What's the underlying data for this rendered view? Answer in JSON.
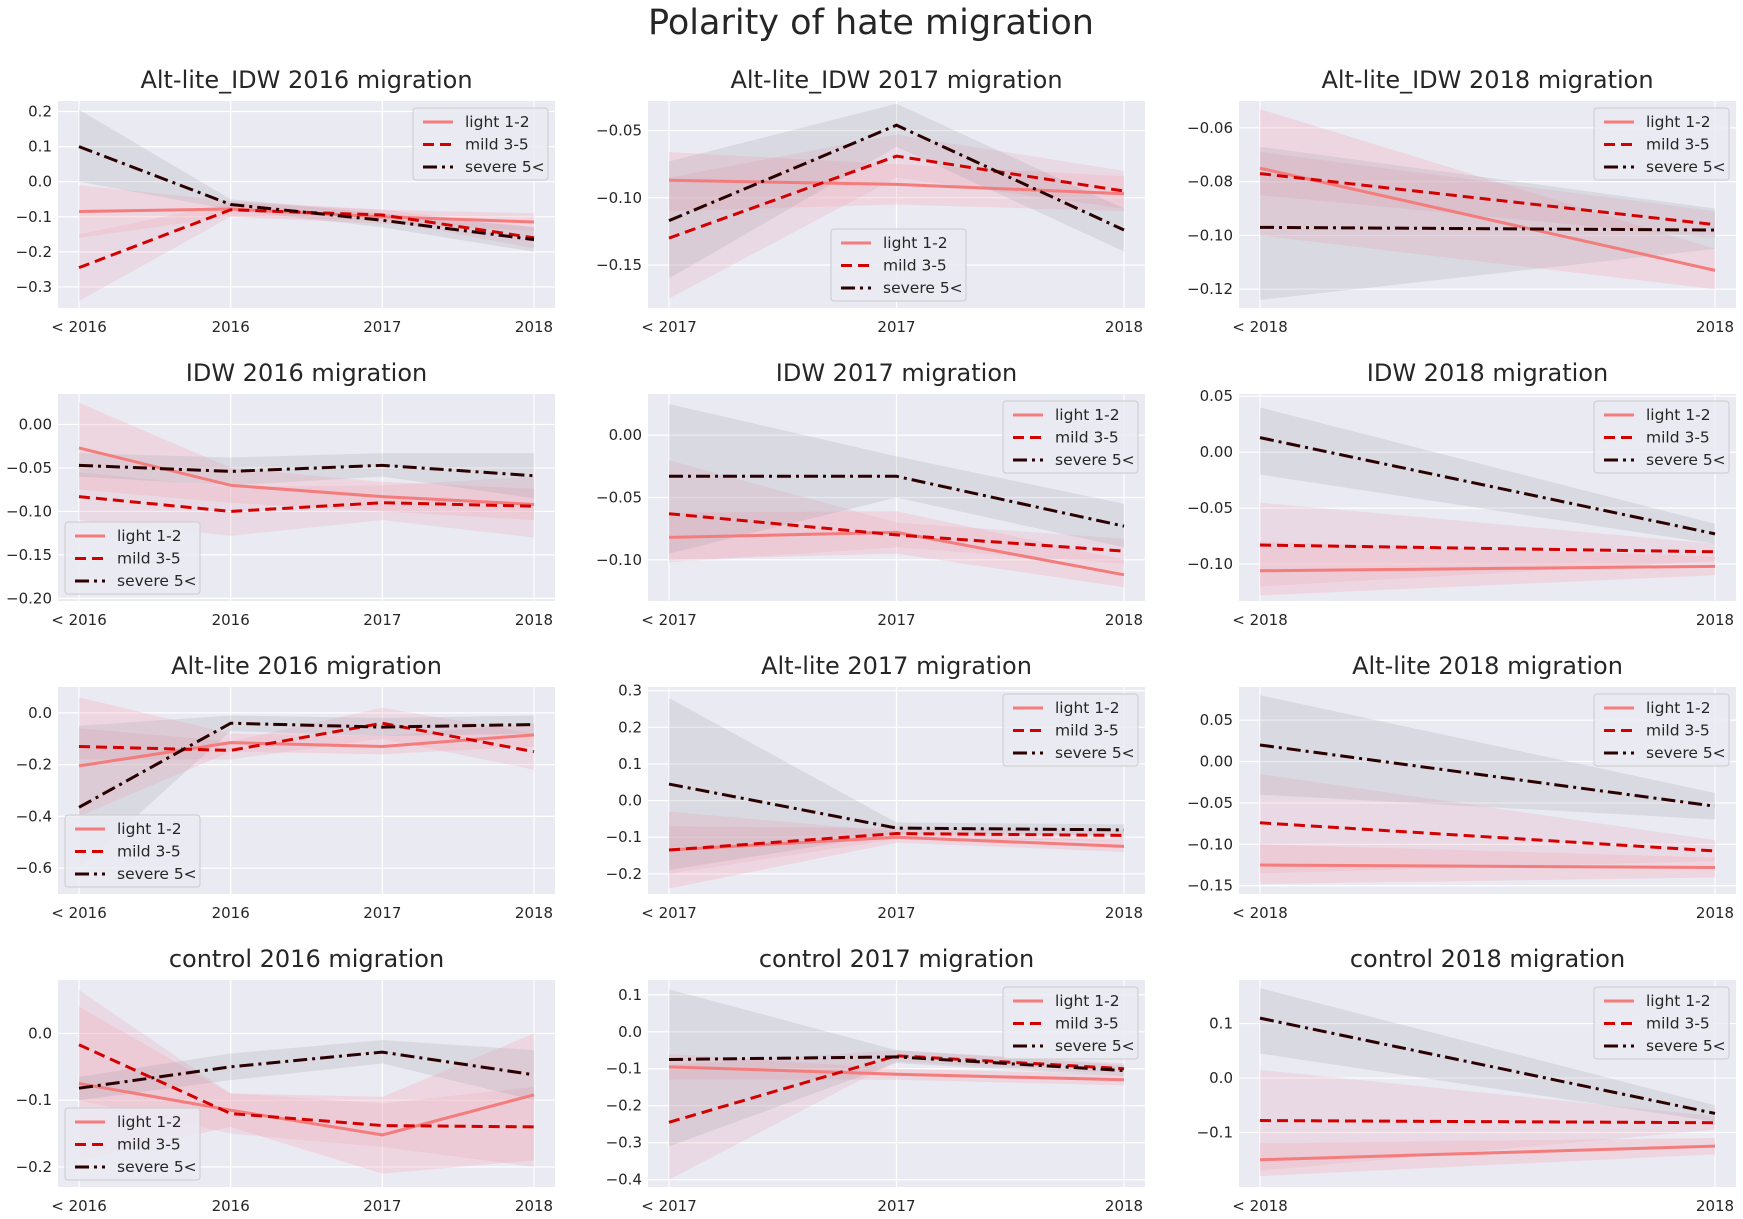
{
  "title": "Polarity of hate migration",
  "colors": {
    "background": "#eaeaf2",
    "grid": "#ffffff",
    "light": "#f47c7c",
    "mild": "#d40000",
    "severe": "#2a0000",
    "band_light": "#f4a3b4",
    "band_mild": "#e8a0b0",
    "band_severe": "#a0a0aa"
  },
  "series_names": [
    "light 1-2",
    "mild 3-5",
    "severe 5<"
  ],
  "chart_data": [
    {
      "type": "line",
      "title": "Alt-lite_IDW 2016 migration",
      "categories": [
        "< 2016",
        "2016",
        "2017",
        "2018"
      ],
      "ylim": [
        -0.36,
        0.23
      ],
      "yticks": [
        0.2,
        0.1,
        0.0,
        -0.1,
        -0.2,
        -0.3
      ],
      "ytick_labels": [
        "0.2",
        "0.1",
        "0.0",
        "−0.1",
        "−0.2",
        "−0.3"
      ],
      "legend": "top-right",
      "grid": true,
      "series": [
        {
          "name": "light 1-2",
          "values": [
            -0.085,
            -0.078,
            -0.1,
            -0.115
          ],
          "lower": [
            -0.16,
            -0.1,
            -0.12,
            -0.14
          ],
          "upper": [
            -0.01,
            -0.055,
            -0.08,
            -0.09
          ]
        },
        {
          "name": "mild 3-5",
          "values": [
            -0.245,
            -0.08,
            -0.095,
            -0.16
          ],
          "lower": [
            -0.34,
            -0.1,
            -0.11,
            -0.19
          ],
          "upper": [
            -0.15,
            -0.06,
            -0.08,
            -0.13
          ]
        },
        {
          "name": "severe 5<",
          "values": [
            0.1,
            -0.065,
            -0.11,
            -0.165
          ],
          "lower": [
            0.0,
            -0.08,
            -0.13,
            -0.2
          ],
          "upper": [
            0.205,
            -0.05,
            -0.09,
            -0.13
          ]
        }
      ]
    },
    {
      "type": "line",
      "title": "Alt-lite_IDW 2017 migration",
      "categories": [
        "< 2017",
        "2017",
        "2018"
      ],
      "ylim": [
        -0.182,
        -0.028
      ],
      "yticks": [
        -0.05,
        -0.1,
        -0.15
      ],
      "ytick_labels": [
        "−0.05",
        "−0.10",
        "−0.15"
      ],
      "legend": "bottom-center",
      "grid": true,
      "series": [
        {
          "name": "light 1-2",
          "values": [
            -0.087,
            -0.09,
            -0.097
          ],
          "lower": [
            -0.11,
            -0.105,
            -0.11
          ],
          "upper": [
            -0.066,
            -0.075,
            -0.084
          ]
        },
        {
          "name": "mild 3-5",
          "values": [
            -0.13,
            -0.069,
            -0.095
          ],
          "lower": [
            -0.175,
            -0.085,
            -0.108
          ],
          "upper": [
            -0.085,
            -0.053,
            -0.08
          ]
        },
        {
          "name": "severe 5<",
          "values": [
            -0.117,
            -0.046,
            -0.124
          ],
          "lower": [
            -0.16,
            -0.062,
            -0.14
          ],
          "upper": [
            -0.073,
            -0.03,
            -0.108
          ]
        }
      ]
    },
    {
      "type": "line",
      "title": "Alt-lite_IDW 2018 migration",
      "categories": [
        "< 2018",
        "2018"
      ],
      "ylim": [
        -0.127,
        -0.05
      ],
      "yticks": [
        -0.06,
        -0.08,
        -0.1,
        -0.12
      ],
      "ytick_labels": [
        "−0.06",
        "−0.08",
        "−0.10",
        "−0.12"
      ],
      "legend": "top-right",
      "grid": true,
      "series": [
        {
          "name": "light 1-2",
          "values": [
            -0.075,
            -0.113
          ],
          "lower": [
            -0.1,
            -0.12
          ],
          "upper": [
            -0.053,
            -0.105
          ]
        },
        {
          "name": "mild 3-5",
          "values": [
            -0.077,
            -0.096
          ],
          "lower": [
            -0.085,
            -0.101
          ],
          "upper": [
            -0.069,
            -0.091
          ]
        },
        {
          "name": "severe 5<",
          "values": [
            -0.097,
            -0.098
          ],
          "lower": [
            -0.124,
            -0.105
          ],
          "upper": [
            -0.067,
            -0.09
          ]
        }
      ]
    },
    {
      "type": "line",
      "title": "IDW 2016 migration",
      "categories": [
        "< 2016",
        "2016",
        "2017",
        "2018"
      ],
      "ylim": [
        -0.203,
        0.035
      ],
      "yticks": [
        0.0,
        -0.05,
        -0.1,
        -0.15,
        -0.2
      ],
      "ytick_labels": [
        "0.00",
        "−0.05",
        "−0.10",
        "−0.15",
        "−0.20"
      ],
      "legend": "bottom-left",
      "grid": true,
      "series": [
        {
          "name": "light 1-2",
          "values": [
            -0.027,
            -0.07,
            -0.083,
            -0.092
          ],
          "lower": [
            -0.075,
            -0.09,
            -0.1,
            -0.11
          ],
          "upper": [
            0.025,
            -0.05,
            -0.066,
            -0.074
          ]
        },
        {
          "name": "mild 3-5",
          "values": [
            -0.083,
            -0.1,
            -0.09,
            -0.094
          ],
          "lower": [
            -0.11,
            -0.128,
            -0.11,
            -0.13
          ],
          "upper": [
            -0.055,
            -0.072,
            -0.07,
            -0.06
          ]
        },
        {
          "name": "severe 5<",
          "values": [
            -0.047,
            -0.054,
            -0.047,
            -0.059
          ],
          "lower": [
            -0.06,
            -0.07,
            -0.06,
            -0.085
          ],
          "upper": [
            -0.033,
            -0.038,
            -0.033,
            -0.033
          ]
        }
      ]
    },
    {
      "type": "line",
      "title": "IDW 2017 migration",
      "categories": [
        "< 2017",
        "2017",
        "2018"
      ],
      "ylim": [
        -0.133,
        0.033
      ],
      "yticks": [
        0.0,
        -0.05,
        -0.1
      ],
      "ytick_labels": [
        "0.00",
        "−0.05",
        "−0.10"
      ],
      "legend": "top-right",
      "grid": true,
      "series": [
        {
          "name": "light 1-2",
          "values": [
            -0.082,
            -0.078,
            -0.112
          ],
          "lower": [
            -0.1,
            -0.095,
            -0.122
          ],
          "upper": [
            -0.062,
            -0.061,
            -0.1
          ]
        },
        {
          "name": "mild 3-5",
          "values": [
            -0.063,
            -0.08,
            -0.093
          ],
          "lower": [
            -0.102,
            -0.09,
            -0.103
          ],
          "upper": [
            -0.02,
            -0.07,
            -0.083
          ]
        },
        {
          "name": "severe 5<",
          "values": [
            -0.033,
            -0.033,
            -0.073
          ],
          "lower": [
            -0.095,
            -0.05,
            -0.09
          ],
          "upper": [
            0.025,
            -0.017,
            -0.055
          ]
        }
      ]
    },
    {
      "type": "line",
      "title": "IDW 2018 migration",
      "categories": [
        "< 2018",
        "2018"
      ],
      "ylim": [
        -0.133,
        0.052
      ],
      "yticks": [
        0.05,
        0.0,
        -0.05,
        -0.1
      ],
      "ytick_labels": [
        "0.05",
        "0.00",
        "−0.05",
        "−0.10"
      ],
      "legend": "top-right",
      "grid": true,
      "series": [
        {
          "name": "light 1-2",
          "values": [
            -0.106,
            -0.102
          ],
          "lower": [
            -0.128,
            -0.11
          ],
          "upper": [
            -0.08,
            -0.093
          ]
        },
        {
          "name": "mild 3-5",
          "values": [
            -0.083,
            -0.089
          ],
          "lower": [
            -0.12,
            -0.097
          ],
          "upper": [
            -0.045,
            -0.082
          ]
        },
        {
          "name": "severe 5<",
          "values": [
            0.013,
            -0.073
          ],
          "lower": [
            -0.02,
            -0.082
          ],
          "upper": [
            0.04,
            -0.064
          ]
        }
      ]
    },
    {
      "type": "line",
      "title": "Alt-lite 2016 migration",
      "categories": [
        "< 2016",
        "2016",
        "2017",
        "2018"
      ],
      "ylim": [
        -0.7,
        0.1
      ],
      "yticks": [
        0.0,
        -0.2,
        -0.4,
        -0.6
      ],
      "ytick_labels": [
        "0.0",
        "−0.2",
        "−0.4",
        "−0.6"
      ],
      "legend": "bottom-left",
      "grid": true,
      "series": [
        {
          "name": "light 1-2",
          "values": [
            -0.205,
            -0.115,
            -0.13,
            -0.085
          ],
          "lower": [
            -0.4,
            -0.15,
            -0.16,
            -0.13
          ],
          "upper": [
            0.06,
            -0.08,
            -0.09,
            -0.04
          ]
        },
        {
          "name": "mild 3-5",
          "values": [
            -0.13,
            -0.145,
            -0.04,
            -0.15
          ],
          "lower": [
            -0.18,
            -0.18,
            -0.1,
            -0.22
          ],
          "upper": [
            -0.06,
            -0.11,
            0.02,
            -0.08
          ]
        },
        {
          "name": "severe 5<",
          "values": [
            -0.365,
            -0.04,
            -0.055,
            -0.045
          ],
          "lower": [
            -0.6,
            -0.07,
            -0.09,
            -0.08
          ],
          "upper": [
            -0.05,
            -0.01,
            -0.02,
            -0.01
          ]
        }
      ]
    },
    {
      "type": "line",
      "title": "Alt-lite 2017 migration",
      "categories": [
        "< 2017",
        "2017",
        "2018"
      ],
      "ylim": [
        -0.255,
        0.31
      ],
      "yticks": [
        0.3,
        0.2,
        0.1,
        0.0,
        -0.1,
        -0.2
      ],
      "ytick_labels": [
        "0.3",
        "0.2",
        "0.1",
        "0.0",
        "−0.1",
        "−0.2"
      ],
      "legend": "top-right",
      "grid": true,
      "series": [
        {
          "name": "light 1-2",
          "values": [
            -0.135,
            -0.1,
            -0.125
          ],
          "lower": [
            -0.24,
            -0.115,
            -0.14
          ],
          "upper": [
            -0.03,
            -0.085,
            -0.11
          ]
        },
        {
          "name": "mild 3-5",
          "values": [
            -0.135,
            -0.09,
            -0.095
          ],
          "lower": [
            -0.2,
            -0.105,
            -0.11
          ],
          "upper": [
            -0.07,
            -0.075,
            -0.08
          ]
        },
        {
          "name": "severe 5<",
          "values": [
            0.045,
            -0.075,
            -0.08
          ],
          "lower": [
            -0.19,
            -0.09,
            -0.095
          ],
          "upper": [
            0.28,
            -0.06,
            -0.065
          ]
        }
      ]
    },
    {
      "type": "line",
      "title": "Alt-lite 2018 migration",
      "categories": [
        "< 2018",
        "2018"
      ],
      "ylim": [
        -0.16,
        0.09
      ],
      "yticks": [
        0.05,
        0.0,
        -0.05,
        -0.1,
        -0.15
      ],
      "ytick_labels": [
        "0.05",
        "0.00",
        "−0.05",
        "−0.10",
        "−0.15"
      ],
      "legend": "top-right",
      "grid": true,
      "series": [
        {
          "name": "light 1-2",
          "values": [
            -0.125,
            -0.128
          ],
          "lower": [
            -0.148,
            -0.14
          ],
          "upper": [
            -0.1,
            -0.116
          ]
        },
        {
          "name": "mild 3-5",
          "values": [
            -0.074,
            -0.108
          ],
          "lower": [
            -0.135,
            -0.12
          ],
          "upper": [
            -0.015,
            -0.095
          ]
        },
        {
          "name": "severe 5<",
          "values": [
            0.02,
            -0.054
          ],
          "lower": [
            -0.04,
            -0.07
          ],
          "upper": [
            0.08,
            -0.038
          ]
        }
      ]
    },
    {
      "type": "line",
      "title": "control 2016 migration",
      "categories": [
        "< 2016",
        "2016",
        "2017",
        "2018"
      ],
      "ylim": [
        -0.23,
        0.08
      ],
      "yticks": [
        0.0,
        -0.1,
        -0.2
      ],
      "ytick_labels": [
        "0.0",
        "−0.1",
        "−0.2"
      ],
      "legend": "bottom-left",
      "grid": true,
      "series": [
        {
          "name": "light 1-2",
          "values": [
            -0.075,
            -0.115,
            -0.152,
            -0.092
          ],
          "lower": [
            -0.19,
            -0.14,
            -0.21,
            -0.19
          ],
          "upper": [
            0.04,
            -0.09,
            -0.095,
            0.0
          ]
        },
        {
          "name": "mild 3-5",
          "values": [
            -0.017,
            -0.12,
            -0.138,
            -0.14
          ],
          "lower": [
            -0.1,
            -0.15,
            -0.17,
            -0.2
          ],
          "upper": [
            0.065,
            -0.09,
            -0.105,
            -0.08
          ]
        },
        {
          "name": "severe 5<",
          "values": [
            -0.082,
            -0.05,
            -0.028,
            -0.062
          ],
          "lower": [
            -0.1,
            -0.07,
            -0.045,
            -0.1
          ],
          "upper": [
            -0.065,
            -0.03,
            -0.01,
            -0.025
          ]
        }
      ]
    },
    {
      "type": "line",
      "title": "control 2017 migration",
      "categories": [
        "< 2017",
        "2017",
        "2018"
      ],
      "ylim": [
        -0.42,
        0.14
      ],
      "yticks": [
        0.1,
        0.0,
        -0.1,
        -0.2,
        -0.3,
        -0.4
      ],
      "ytick_labels": [
        "0.1",
        "0.0",
        "−0.1",
        "−0.2",
        "−0.3",
        "−0.4"
      ],
      "legend": "top-right",
      "grid": true,
      "series": [
        {
          "name": "light 1-2",
          "values": [
            -0.095,
            -0.115,
            -0.13
          ],
          "lower": [
            -0.13,
            -0.13,
            -0.145
          ],
          "upper": [
            -0.06,
            -0.1,
            -0.115
          ]
        },
        {
          "name": "mild 3-5",
          "values": [
            -0.245,
            -0.065,
            -0.1
          ],
          "lower": [
            -0.4,
            -0.08,
            -0.115
          ],
          "upper": [
            -0.09,
            -0.05,
            -0.085
          ]
        },
        {
          "name": "severe 5<",
          "values": [
            -0.075,
            -0.068,
            -0.105
          ],
          "lower": [
            -0.31,
            -0.085,
            -0.12
          ],
          "upper": [
            0.115,
            -0.05,
            -0.09
          ]
        }
      ]
    },
    {
      "type": "line",
      "title": "control 2018 migration",
      "categories": [
        "< 2018",
        "2018"
      ],
      "ylim": [
        -0.2,
        0.18
      ],
      "yticks": [
        0.1,
        0.0,
        -0.1
      ],
      "ytick_labels": [
        "0.1",
        "0.0",
        "−0.1"
      ],
      "legend": "top-right",
      "grid": true,
      "series": [
        {
          "name": "light 1-2",
          "values": [
            -0.15,
            -0.125
          ],
          "lower": [
            -0.18,
            -0.14
          ],
          "upper": [
            -0.12,
            -0.11
          ]
        },
        {
          "name": "mild 3-5",
          "values": [
            -0.078,
            -0.082
          ],
          "lower": [
            -0.17,
            -0.095
          ],
          "upper": [
            0.015,
            -0.07
          ]
        },
        {
          "name": "severe 5<",
          "values": [
            0.11,
            -0.065
          ],
          "lower": [
            0.045,
            -0.08
          ],
          "upper": [
            0.165,
            -0.05
          ]
        }
      ]
    }
  ]
}
